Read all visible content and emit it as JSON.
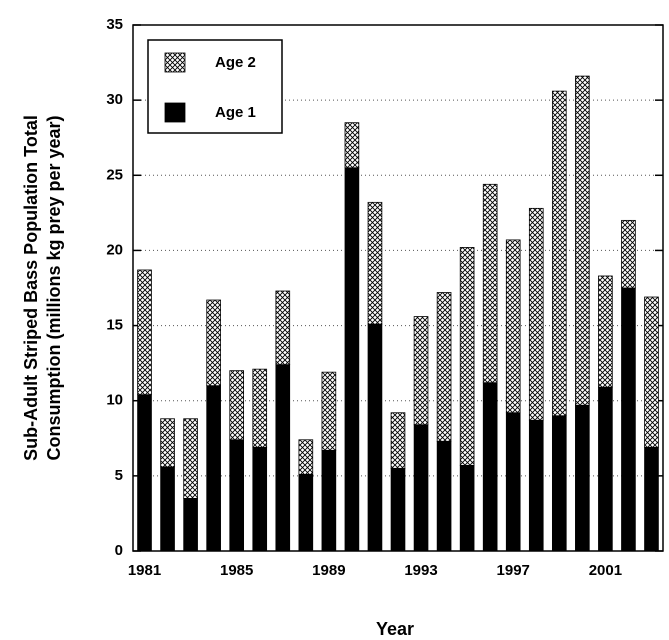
{
  "chart_data": {
    "type": "stacked_bar",
    "xlabel": "Year",
    "ylabel": [
      "Sub-Adult Striped Bass Population Total",
      "Consumption (millions kg prey per year)"
    ],
    "categories": [
      "1981",
      null,
      null,
      null,
      "1985",
      null,
      null,
      null,
      "1989",
      null,
      null,
      null,
      "1993",
      null,
      null,
      null,
      "1997",
      null,
      null,
      null,
      "2001",
      null,
      null
    ],
    "series": [
      {
        "name": "Age 1",
        "color": "#000000",
        "hatch": false,
        "values": [
          10.4,
          5.6,
          3.5,
          11.0,
          7.4,
          6.9,
          12.4,
          5.1,
          6.7,
          25.5,
          15.1,
          5.5,
          8.4,
          7.3,
          5.7,
          11.2,
          9.2,
          8.7,
          9.0,
          9.7,
          10.9,
          17.5,
          6.9
        ]
      },
      {
        "name": "Age 2",
        "color": "#000000",
        "hatch": true,
        "values": [
          8.3,
          3.2,
          5.3,
          5.7,
          4.6,
          5.2,
          4.9,
          2.3,
          5.2,
          3.0,
          8.1,
          3.7,
          7.2,
          9.9,
          14.5,
          13.2,
          11.5,
          14.1,
          21.6,
          21.9,
          7.4,
          4.5,
          10.0
        ]
      }
    ],
    "ylim": [
      0,
      35
    ],
    "yticks": [
      0,
      5,
      10,
      15,
      20,
      25,
      30,
      35
    ],
    "grid": true,
    "legend": "upper left"
  }
}
